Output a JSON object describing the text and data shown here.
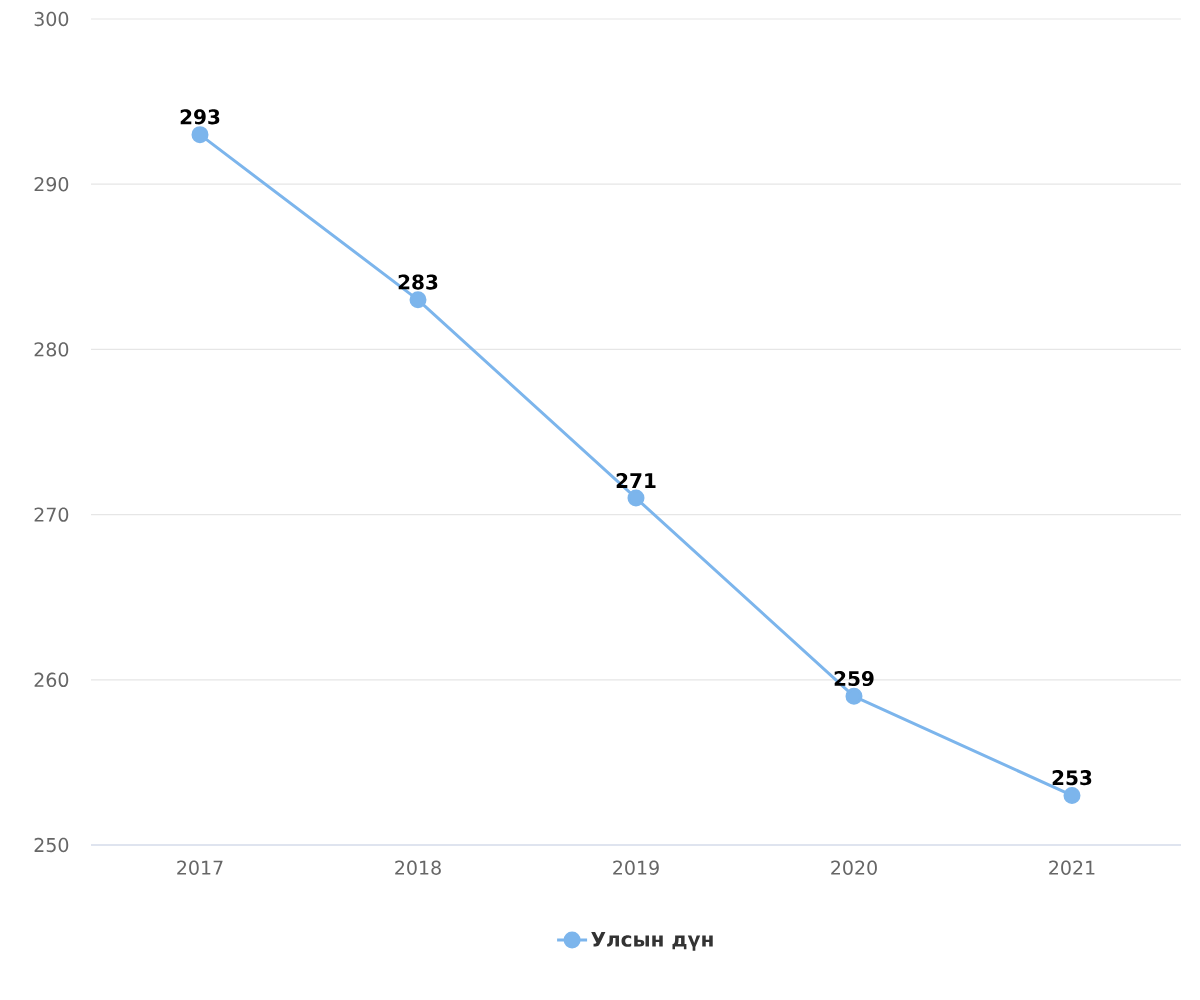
{
  "chart_data": {
    "type": "line",
    "categories": [
      "2017",
      "2018",
      "2019",
      "2020",
      "2021"
    ],
    "series": [
      {
        "name": "Улсын дүн",
        "color": "#7cb5ec",
        "values": [
          293,
          283,
          271,
          259,
          253
        ]
      }
    ],
    "ylim": [
      250,
      300
    ],
    "yticks": [
      250,
      260,
      270,
      280,
      290,
      300
    ],
    "grid": "y",
    "legend": "bottom",
    "marker": "circle",
    "line_style": "solid",
    "data_labels": true
  }
}
